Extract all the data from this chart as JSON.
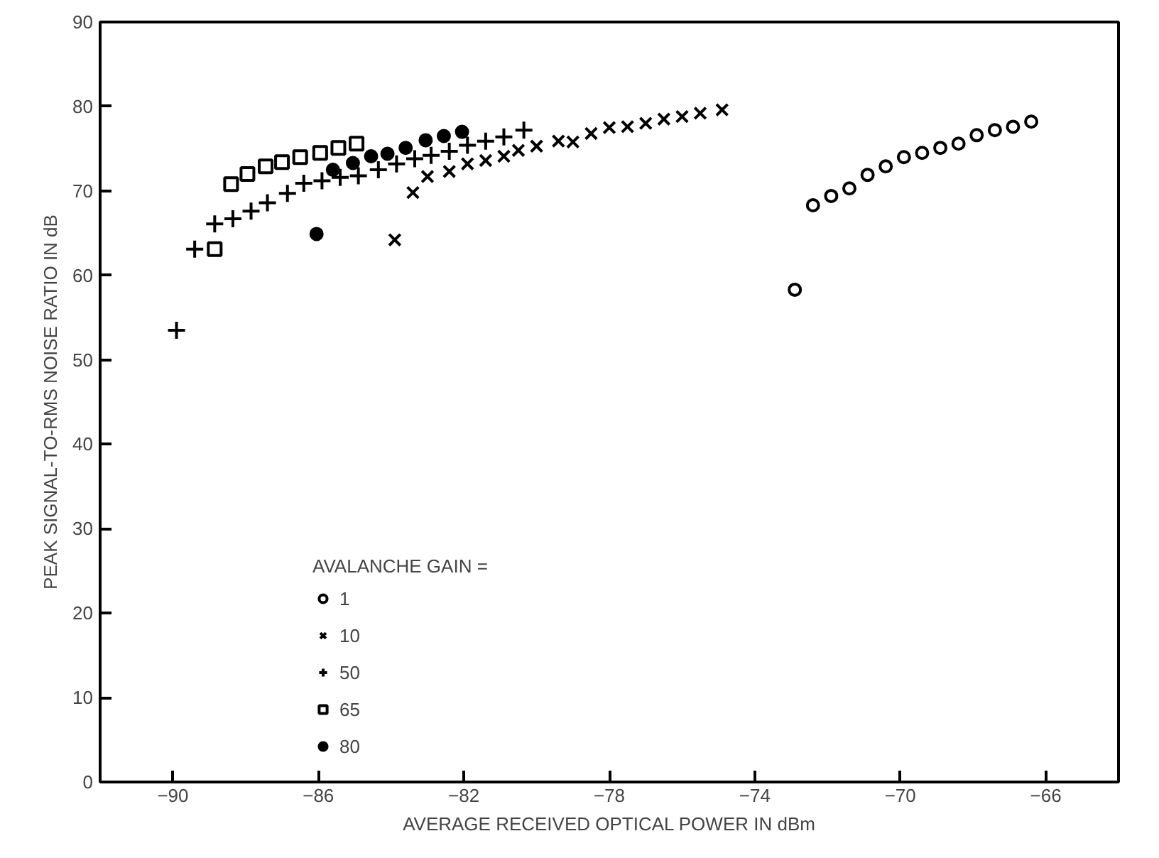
{
  "chart_data": {
    "type": "scatter",
    "xlabel": "AVERAGE RECEIVED OPTICAL POWER IN dBm",
    "ylabel": "PEAK SIGNAL-TO-RMS NOISE RATIO IN dB",
    "legend_title": "AVALANCHE GAIN =",
    "xlim": [
      -92,
      -64
    ],
    "xticks": [
      -90,
      -86,
      -82,
      -78,
      -74,
      -70,
      -66
    ],
    "ylim": [
      0,
      90
    ],
    "yticks": [
      0,
      10,
      20,
      30,
      40,
      50,
      60,
      70,
      80,
      90
    ],
    "grid": false,
    "legend": "bottom left",
    "series": [
      {
        "name": "1",
        "color": "#000000",
        "marker": "circle_open",
        "x": [
          -72.9,
          -72.4,
          -71.9,
          -71.4,
          -70.9,
          -70.4,
          -69.9,
          -69.4,
          -68.9,
          -68.4,
          -67.9,
          -67.4,
          -66.9,
          -66.4
        ],
        "values": [
          58.3,
          68.3,
          69.4,
          70.3,
          71.9,
          72.9,
          74.0,
          74.5,
          75.1,
          75.6,
          76.6,
          77.2,
          77.6,
          78.2
        ]
      },
      {
        "name": "10",
        "color": "#000000",
        "marker": "x",
        "x": [
          -83.9,
          -83.4,
          -83.0,
          -82.4,
          -81.9,
          -81.4,
          -80.9,
          -80.5,
          -80.0,
          -79.4,
          -79.0,
          -78.5,
          -78.0,
          -77.5,
          -77.0,
          -76.5,
          -76.0,
          -75.5,
          -74.9
        ],
        "values": [
          64.2,
          69.8,
          71.7,
          72.3,
          73.2,
          73.6,
          74.1,
          74.8,
          75.3,
          75.9,
          75.8,
          76.8,
          77.5,
          77.6,
          78.0,
          78.5,
          78.8,
          79.2,
          79.6
        ]
      },
      {
        "name": "50",
        "color": "#000000",
        "marker": "cross",
        "x": [
          -89.9,
          -89.4,
          -88.85,
          -88.35,
          -87.85,
          -87.4,
          -86.85,
          -86.4,
          -85.9,
          -85.4,
          -84.9,
          -84.35,
          -83.85,
          -83.35,
          -82.9,
          -82.4,
          -81.9,
          -81.4,
          -80.9,
          -80.35
        ],
        "values": [
          53.5,
          63.1,
          66.1,
          66.7,
          67.6,
          68.6,
          69.7,
          70.9,
          71.2,
          71.6,
          71.8,
          72.5,
          73.2,
          73.8,
          74.2,
          74.7,
          75.4,
          75.9,
          76.4,
          77.2
        ]
      },
      {
        "name": "65",
        "color": "#000000",
        "marker": "square_open",
        "x": [
          -88.85,
          -88.4,
          -87.95,
          -87.45,
          -87.0,
          -86.5,
          -85.95,
          -85.45,
          -84.95
        ],
        "values": [
          63.1,
          70.8,
          72.0,
          72.9,
          73.4,
          74.0,
          74.5,
          75.1,
          75.6
        ]
      },
      {
        "name": "80",
        "color": "#000000",
        "marker": "circle",
        "x": [
          -86.05,
          -85.6,
          -85.05,
          -84.55,
          -84.1,
          -83.6,
          -83.05,
          -82.55,
          -82.05
        ],
        "values": [
          64.9,
          72.5,
          73.3,
          74.1,
          74.4,
          75.1,
          76.0,
          76.5,
          77.0
        ]
      }
    ]
  }
}
